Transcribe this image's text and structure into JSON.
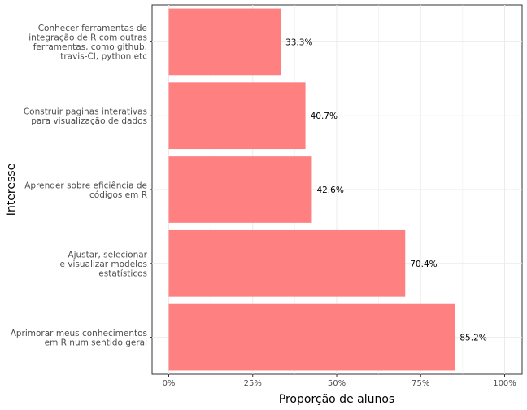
{
  "chart_data": {
    "type": "bar",
    "orientation": "horizontal",
    "xlabel": "Proporção de alunos",
    "ylabel": "Interesse",
    "xlim": [
      0,
      1
    ],
    "xticks": [
      0,
      0.25,
      0.5,
      0.75,
      1
    ],
    "xtick_labels": [
      "0%",
      "25%",
      "50%",
      "75%",
      "100%"
    ],
    "grid": true,
    "bar_color": "#ff8080",
    "categories": [
      [
        "Conhecer ferramentas de",
        "integração de R com outras",
        "ferramentas, como github,",
        "travis-CI, python etc"
      ],
      [
        "Construir paginas interativas",
        "para visualização de dados"
      ],
      [
        "Aprender sobre eficiência de",
        "códigos em R"
      ],
      [
        "Ajustar, selecionar",
        "e visualizar modelos",
        "estatísticos"
      ],
      [
        "Aprimorar meus conhecimentos",
        "em R num sentido geral"
      ]
    ],
    "values": [
      0.333,
      0.407,
      0.426,
      0.704,
      0.852
    ],
    "data_labels": [
      "33.3%",
      "40.7%",
      "42.6%",
      "70.4%",
      "85.2%"
    ]
  }
}
